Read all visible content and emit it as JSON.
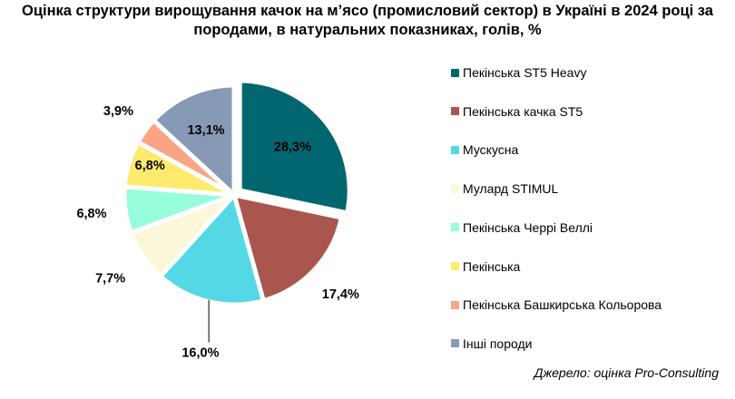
{
  "chart_data": {
    "type": "pie",
    "title": "Оцінка структури вирощування качок на м’ясо (промисловий сектор) в Україні в 2024 році за породами, в натуральних показниках, голів,  %",
    "categories": [
      "Пекінська ST5 Heavy",
      "Пекінська качка ST5",
      "Мускусна",
      "Мулард STIMUL",
      "Пекінська Черрі Веллі",
      "Пекінська",
      "Пекінська Башкирська Кольорова",
      "Інші породи"
    ],
    "values": [
      28.3,
      17.4,
      16.0,
      7.7,
      6.8,
      6.8,
      3.9,
      13.1
    ],
    "labels": [
      "28,3%",
      "17,4%",
      "16,0%",
      "7,7%",
      "6,8%",
      "6,8%",
      "3,9%",
      "13,1%"
    ],
    "colors": [
      "#026670",
      "#A9564E",
      "#55D8E6",
      "#FDF7D9",
      "#98FDDD",
      "#FDEB6D",
      "#F9A585",
      "#8699B5"
    ],
    "legend_position": "right"
  },
  "source_note": "Джерело: оцінка Pro-Consulting"
}
